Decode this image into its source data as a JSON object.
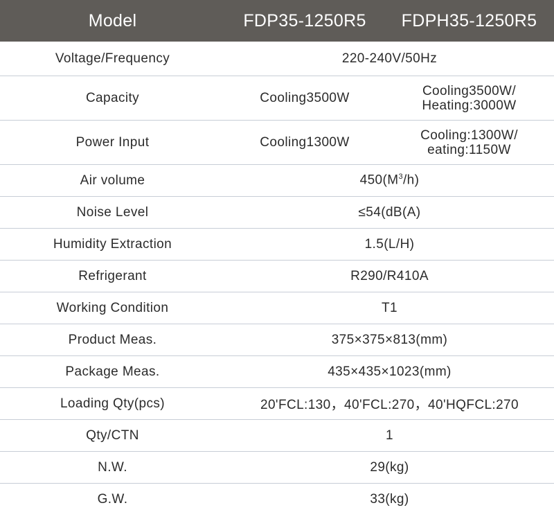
{
  "header": {
    "label": "Model",
    "model_a": "FDP35-1250R5",
    "model_b": "FDPH35-1250R5"
  },
  "rows": {
    "voltage": {
      "label": "Voltage/Frequency",
      "value": "220-240V/50Hz"
    },
    "capacity": {
      "label": "Capacity",
      "value_a": "Cooling3500W",
      "value_b_line1": "Cooling3500W/",
      "value_b_line2": "Heating:3000W"
    },
    "power_input": {
      "label": "Power Input",
      "value_a": "Cooling1300W",
      "value_b_line1": "Cooling:1300W/",
      "value_b_line2": "eating:1150W"
    },
    "air_volume": {
      "label": "Air volume",
      "value_pre": "450(M",
      "value_sup": "3",
      "value_post": "/h)"
    },
    "noise_level": {
      "label": "Noise Level",
      "value": "≤54(dB(A)"
    },
    "humidity_extraction": {
      "label": "Humidity Extraction",
      "value": "1.5(L/H)"
    },
    "refrigerant": {
      "label": "Refrigerant",
      "value": "R290/R410A"
    },
    "working_condition": {
      "label": "Working Condition",
      "value": "T1"
    },
    "product_meas": {
      "label": "Product Meas.",
      "value": "375×375×813(mm)"
    },
    "package_meas": {
      "label": "Package Meas.",
      "value": "435×435×1023(mm)"
    },
    "loading_qty": {
      "label": "Loading Qty(pcs)",
      "value": "20'FCL:130，40'FCL:270，40'HQFCL:270"
    },
    "qty_ctn": {
      "label": "Qty/CTN",
      "value": "1"
    },
    "nw": {
      "label": "N.W.",
      "value": "29(kg)"
    },
    "gw": {
      "label": "G.W.",
      "value": "33(kg)"
    }
  },
  "colors": {
    "header_bg": "#5f5c58",
    "header_text": "#ffffff",
    "divider": "#c7cdd6",
    "body_text": "#2b2b2b"
  }
}
